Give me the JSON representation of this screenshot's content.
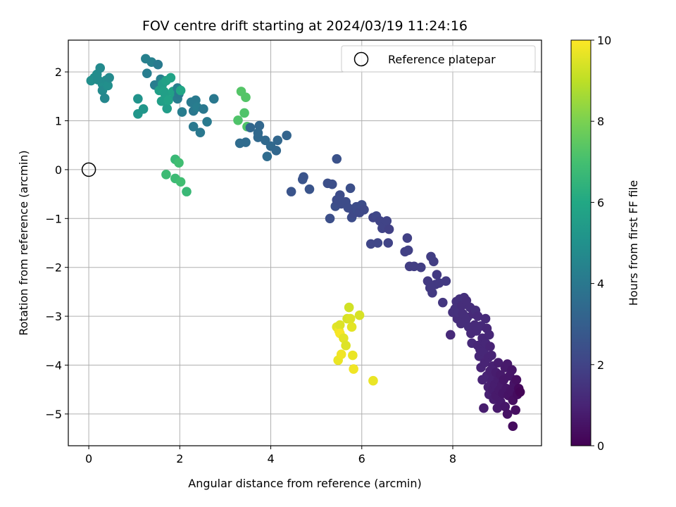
{
  "chart_data": {
    "type": "scatter",
    "title": "FOV centre drift starting at 2024/03/19 11:24:16",
    "xlabel": "Angular distance from reference (arcmin)",
    "ylabel": "Rotation from reference (arcmin)",
    "xlim": [
      -0.45,
      9.95
    ],
    "ylim": [
      -5.65,
      2.65
    ],
    "xticks": [
      0,
      2,
      4,
      6,
      8
    ],
    "yticks": [
      -5,
      -4,
      -3,
      -2,
      -1,
      0,
      1,
      2
    ],
    "grid": true,
    "legend": {
      "placement": "top-right",
      "entries": [
        "Reference platepar"
      ]
    },
    "reference_point": {
      "x": 0,
      "y": 0
    },
    "colorbar": {
      "label": "Hours from first FF file",
      "min": 0,
      "max": 10,
      "ticks": [
        0,
        2,
        4,
        6,
        8,
        10
      ],
      "colormap": "viridis"
    },
    "points": [
      {
        "x": 0.05,
        "y": 1.82,
        "h": 4.9
      },
      {
        "x": 0.12,
        "y": 1.88,
        "h": 4.9
      },
      {
        "x": 0.18,
        "y": 1.95,
        "h": 4.8
      },
      {
        "x": 0.25,
        "y": 2.08,
        "h": 4.7
      },
      {
        "x": 0.3,
        "y": 1.75,
        "h": 4.9
      },
      {
        "x": 0.3,
        "y": 1.62,
        "h": 4.7
      },
      {
        "x": 0.35,
        "y": 1.46,
        "h": 4.6
      },
      {
        "x": 0.38,
        "y": 1.83,
        "h": 4.8
      },
      {
        "x": 0.42,
        "y": 1.72,
        "h": 4.9
      },
      {
        "x": 0.45,
        "y": 1.88,
        "h": 4.7
      },
      {
        "x": 0.2,
        "y": 1.84,
        "h": 4.8
      },
      {
        "x": 1.08,
        "y": 1.45,
        "h": 5.1
      },
      {
        "x": 1.08,
        "y": 1.14,
        "h": 5.2
      },
      {
        "x": 1.2,
        "y": 1.24,
        "h": 5.2
      },
      {
        "x": 1.25,
        "y": 2.27,
        "h": 4.3
      },
      {
        "x": 1.28,
        "y": 1.97,
        "h": 4.2
      },
      {
        "x": 1.38,
        "y": 2.2,
        "h": 4.3
      },
      {
        "x": 1.45,
        "y": 1.73,
        "h": 4.2
      },
      {
        "x": 1.52,
        "y": 2.15,
        "h": 4.1
      },
      {
        "x": 1.55,
        "y": 1.62,
        "h": 5.6
      },
      {
        "x": 1.58,
        "y": 1.85,
        "h": 4.3
      },
      {
        "x": 1.6,
        "y": 1.4,
        "h": 5.6
      },
      {
        "x": 1.62,
        "y": 1.75,
        "h": 5.5
      },
      {
        "x": 1.65,
        "y": 1.6,
        "h": 5.7
      },
      {
        "x": 1.68,
        "y": 1.54,
        "h": 5.6
      },
      {
        "x": 1.7,
        "y": 1.82,
        "h": 5.7
      },
      {
        "x": 1.72,
        "y": 1.25,
        "h": 5.5
      },
      {
        "x": 1.75,
        "y": 1.42,
        "h": 5.8
      },
      {
        "x": 1.8,
        "y": 1.88,
        "h": 5.8
      },
      {
        "x": 1.85,
        "y": 1.6,
        "h": 5.8
      },
      {
        "x": 1.88,
        "y": 1.55,
        "h": 5.7
      },
      {
        "x": 1.95,
        "y": 1.67,
        "h": 4.3
      },
      {
        "x": 1.95,
        "y": 1.45,
        "h": 4.2
      },
      {
        "x": 1.98,
        "y": 1.55,
        "h": 4.1
      },
      {
        "x": 2.02,
        "y": 1.62,
        "h": 5.9
      },
      {
        "x": 2.05,
        "y": 1.18,
        "h": 4.2
      },
      {
        "x": 2.25,
        "y": 1.38,
        "h": 4.1
      },
      {
        "x": 2.3,
        "y": 1.2,
        "h": 4.0
      },
      {
        "x": 2.3,
        "y": 0.88,
        "h": 4.0
      },
      {
        "x": 2.35,
        "y": 1.42,
        "h": 4.1
      },
      {
        "x": 2.38,
        "y": 1.28,
        "h": 4.2
      },
      {
        "x": 2.45,
        "y": 0.76,
        "h": 4.0
      },
      {
        "x": 2.52,
        "y": 1.24,
        "h": 4.0
      },
      {
        "x": 2.6,
        "y": 0.98,
        "h": 4.1
      },
      {
        "x": 2.75,
        "y": 1.45,
        "h": 4.0
      },
      {
        "x": 1.7,
        "y": -0.1,
        "h": 6.8
      },
      {
        "x": 1.9,
        "y": 0.21,
        "h": 6.7
      },
      {
        "x": 1.9,
        "y": -0.18,
        "h": 6.8
      },
      {
        "x": 1.98,
        "y": 0.14,
        "h": 6.9
      },
      {
        "x": 2.02,
        "y": -0.25,
        "h": 6.9
      },
      {
        "x": 2.15,
        "y": -0.45,
        "h": 6.7
      },
      {
        "x": 3.28,
        "y": 1.01,
        "h": 7.2
      },
      {
        "x": 3.35,
        "y": 1.6,
        "h": 7.3
      },
      {
        "x": 3.42,
        "y": 1.16,
        "h": 7.2
      },
      {
        "x": 3.45,
        "y": 1.48,
        "h": 7.3
      },
      {
        "x": 3.48,
        "y": 0.88,
        "h": 7.2
      },
      {
        "x": 3.32,
        "y": 0.54,
        "h": 3.5
      },
      {
        "x": 3.45,
        "y": 0.56,
        "h": 3.5
      },
      {
        "x": 3.55,
        "y": 0.86,
        "h": 3.3
      },
      {
        "x": 3.72,
        "y": 0.66,
        "h": 3.4
      },
      {
        "x": 3.75,
        "y": 0.9,
        "h": 3.3
      },
      {
        "x": 3.72,
        "y": 0.75,
        "h": 3.4
      },
      {
        "x": 3.88,
        "y": 0.6,
        "h": 3.4
      },
      {
        "x": 3.92,
        "y": 0.27,
        "h": 3.5
      },
      {
        "x": 4.0,
        "y": 0.48,
        "h": 3.4
      },
      {
        "x": 4.12,
        "y": 0.39,
        "h": 3.3
      },
      {
        "x": 4.15,
        "y": 0.6,
        "h": 3.3
      },
      {
        "x": 4.35,
        "y": 0.7,
        "h": 3.2
      },
      {
        "x": 4.45,
        "y": -0.45,
        "h": 2.6
      },
      {
        "x": 4.7,
        "y": -0.2,
        "h": 2.6
      },
      {
        "x": 4.72,
        "y": -0.15,
        "h": 2.6
      },
      {
        "x": 4.85,
        "y": -0.4,
        "h": 2.6
      },
      {
        "x": 5.25,
        "y": -0.28,
        "h": 2.4
      },
      {
        "x": 5.35,
        "y": -0.3,
        "h": 2.4
      },
      {
        "x": 5.3,
        "y": -1.0,
        "h": 2.4
      },
      {
        "x": 5.42,
        "y": -0.75,
        "h": 2.4
      },
      {
        "x": 5.45,
        "y": 0.22,
        "h": 2.5
      },
      {
        "x": 5.45,
        "y": -0.62,
        "h": 2.3
      },
      {
        "x": 5.52,
        "y": -0.52,
        "h": 2.3
      },
      {
        "x": 5.55,
        "y": -0.7,
        "h": 2.3
      },
      {
        "x": 5.65,
        "y": -0.66,
        "h": 2.3
      },
      {
        "x": 5.7,
        "y": -0.78,
        "h": 2.3
      },
      {
        "x": 5.75,
        "y": -0.38,
        "h": 2.4
      },
      {
        "x": 5.78,
        "y": -0.98,
        "h": 2.3
      },
      {
        "x": 5.82,
        "y": -0.9,
        "h": 2.2
      },
      {
        "x": 5.88,
        "y": -0.76,
        "h": 2.3
      },
      {
        "x": 5.9,
        "y": -0.82,
        "h": 2.3
      },
      {
        "x": 5.95,
        "y": -0.88,
        "h": 2.2
      },
      {
        "x": 6.0,
        "y": -0.72,
        "h": 2.3
      },
      {
        "x": 6.05,
        "y": -0.82,
        "h": 2.2
      },
      {
        "x": 6.2,
        "y": -1.52,
        "h": 2.1
      },
      {
        "x": 6.25,
        "y": -0.98,
        "h": 2.0
      },
      {
        "x": 6.32,
        "y": -0.95,
        "h": 2.1
      },
      {
        "x": 6.35,
        "y": -1.5,
        "h": 2.1
      },
      {
        "x": 6.4,
        "y": -1.05,
        "h": 2.0
      },
      {
        "x": 6.45,
        "y": -1.2,
        "h": 2.0
      },
      {
        "x": 6.5,
        "y": -1.15,
        "h": 2.0
      },
      {
        "x": 6.55,
        "y": -1.05,
        "h": 2.0
      },
      {
        "x": 6.58,
        "y": -1.5,
        "h": 2.0
      },
      {
        "x": 6.6,
        "y": -1.22,
        "h": 1.9
      },
      {
        "x": 6.95,
        "y": -1.68,
        "h": 1.9
      },
      {
        "x": 7.0,
        "y": -1.4,
        "h": 1.9
      },
      {
        "x": 7.02,
        "y": -1.65,
        "h": 1.9
      },
      {
        "x": 7.05,
        "y": -1.98,
        "h": 1.8
      },
      {
        "x": 7.15,
        "y": -1.98,
        "h": 1.8
      },
      {
        "x": 7.3,
        "y": -2.0,
        "h": 1.8
      },
      {
        "x": 7.45,
        "y": -2.28,
        "h": 1.7
      },
      {
        "x": 7.5,
        "y": -2.42,
        "h": 1.7
      },
      {
        "x": 7.55,
        "y": -2.52,
        "h": 1.7
      },
      {
        "x": 7.52,
        "y": -1.78,
        "h": 1.8
      },
      {
        "x": 7.58,
        "y": -1.88,
        "h": 1.8
      },
      {
        "x": 7.62,
        "y": -2.35,
        "h": 1.7
      },
      {
        "x": 7.65,
        "y": -2.15,
        "h": 1.7
      },
      {
        "x": 7.7,
        "y": -2.32,
        "h": 1.7
      },
      {
        "x": 7.78,
        "y": -2.72,
        "h": 1.6
      },
      {
        "x": 7.85,
        "y": -2.28,
        "h": 1.7
      },
      {
        "x": 7.95,
        "y": -3.38,
        "h": 1.2
      },
      {
        "x": 8.0,
        "y": -2.92,
        "h": 1.4
      },
      {
        "x": 8.05,
        "y": -2.85,
        "h": 1.4
      },
      {
        "x": 8.08,
        "y": -2.7,
        "h": 1.4
      },
      {
        "x": 8.1,
        "y": -3.05,
        "h": 1.3
      },
      {
        "x": 8.12,
        "y": -2.92,
        "h": 1.4
      },
      {
        "x": 8.15,
        "y": -2.65,
        "h": 1.4
      },
      {
        "x": 8.18,
        "y": -3.15,
        "h": 1.3
      },
      {
        "x": 8.2,
        "y": -2.78,
        "h": 1.3
      },
      {
        "x": 8.22,
        "y": -2.95,
        "h": 1.3
      },
      {
        "x": 8.25,
        "y": -2.62,
        "h": 1.4
      },
      {
        "x": 8.28,
        "y": -3.1,
        "h": 1.3
      },
      {
        "x": 8.3,
        "y": -2.68,
        "h": 1.3
      },
      {
        "x": 8.32,
        "y": -3.02,
        "h": 1.3
      },
      {
        "x": 8.35,
        "y": -3.22,
        "h": 1.3
      },
      {
        "x": 8.38,
        "y": -2.82,
        "h": 1.3
      },
      {
        "x": 8.4,
        "y": -3.35,
        "h": 1.2
      },
      {
        "x": 8.42,
        "y": -3.55,
        "h": 1.2
      },
      {
        "x": 8.45,
        "y": -2.95,
        "h": 1.2
      },
      {
        "x": 8.48,
        "y": -3.18,
        "h": 1.2
      },
      {
        "x": 8.5,
        "y": -2.88,
        "h": 1.3
      },
      {
        "x": 8.52,
        "y": -3.3,
        "h": 1.2
      },
      {
        "x": 8.55,
        "y": -3.0,
        "h": 1.2
      },
      {
        "x": 8.55,
        "y": -3.6,
        "h": 1.1
      },
      {
        "x": 8.58,
        "y": -3.82,
        "h": 1.1
      },
      {
        "x": 8.6,
        "y": -3.68,
        "h": 1.1
      },
      {
        "x": 8.62,
        "y": -3.2,
        "h": 1.2
      },
      {
        "x": 8.62,
        "y": -4.05,
        "h": 1.0
      },
      {
        "x": 8.65,
        "y": -3.45,
        "h": 1.1
      },
      {
        "x": 8.65,
        "y": -4.3,
        "h": 1.0
      },
      {
        "x": 8.68,
        "y": -3.72,
        "h": 1.1
      },
      {
        "x": 8.68,
        "y": -4.88,
        "h": 0.8
      },
      {
        "x": 8.7,
        "y": -3.95,
        "h": 1.0
      },
      {
        "x": 8.72,
        "y": -3.05,
        "h": 1.2
      },
      {
        "x": 8.72,
        "y": -3.55,
        "h": 1.1
      },
      {
        "x": 8.75,
        "y": -4.22,
        "h": 1.0
      },
      {
        "x": 8.75,
        "y": -3.25,
        "h": 1.1
      },
      {
        "x": 8.78,
        "y": -3.85,
        "h": 1.0
      },
      {
        "x": 8.78,
        "y": -4.45,
        "h": 0.9
      },
      {
        "x": 8.8,
        "y": -3.38,
        "h": 1.1
      },
      {
        "x": 8.8,
        "y": -4.6,
        "h": 0.9
      },
      {
        "x": 8.82,
        "y": -3.62,
        "h": 1.0
      },
      {
        "x": 8.82,
        "y": -4.12,
        "h": 0.9
      },
      {
        "x": 8.85,
        "y": -4.35,
        "h": 0.9
      },
      {
        "x": 8.85,
        "y": -3.8,
        "h": 1.0
      },
      {
        "x": 8.88,
        "y": -4.5,
        "h": 0.8
      },
      {
        "x": 8.88,
        "y": -4.02,
        "h": 0.9
      },
      {
        "x": 8.9,
        "y": -4.7,
        "h": 0.8
      },
      {
        "x": 8.9,
        "y": -4.25,
        "h": 0.9
      },
      {
        "x": 8.92,
        "y": -4.4,
        "h": 0.8
      },
      {
        "x": 8.95,
        "y": -4.15,
        "h": 0.8
      },
      {
        "x": 8.95,
        "y": -4.62,
        "h": 0.7
      },
      {
        "x": 8.98,
        "y": -4.88,
        "h": 0.7
      },
      {
        "x": 9.0,
        "y": -4.3,
        "h": 0.8
      },
      {
        "x": 9.0,
        "y": -3.95,
        "h": 0.8
      },
      {
        "x": 9.02,
        "y": -4.52,
        "h": 0.7
      },
      {
        "x": 9.05,
        "y": -4.75,
        "h": 0.7
      },
      {
        "x": 9.05,
        "y": -4.2,
        "h": 0.7
      },
      {
        "x": 9.08,
        "y": -4.4,
        "h": 0.7
      },
      {
        "x": 9.1,
        "y": -4.58,
        "h": 0.6
      },
      {
        "x": 9.12,
        "y": -4.3,
        "h": 0.6
      },
      {
        "x": 9.15,
        "y": -4.85,
        "h": 0.6
      },
      {
        "x": 9.15,
        "y": -4.05,
        "h": 0.7
      },
      {
        "x": 9.18,
        "y": -4.48,
        "h": 0.6
      },
      {
        "x": 9.2,
        "y": -5.0,
        "h": 0.5
      },
      {
        "x": 9.2,
        "y": -3.98,
        "h": 0.7
      },
      {
        "x": 9.22,
        "y": -4.62,
        "h": 0.5
      },
      {
        "x": 9.25,
        "y": -4.22,
        "h": 0.6
      },
      {
        "x": 9.28,
        "y": -4.52,
        "h": 0.5
      },
      {
        "x": 9.3,
        "y": -4.1,
        "h": 0.6
      },
      {
        "x": 9.32,
        "y": -4.72,
        "h": 0.4
      },
      {
        "x": 9.32,
        "y": -5.25,
        "h": 0.3
      },
      {
        "x": 9.35,
        "y": -4.38,
        "h": 0.5
      },
      {
        "x": 9.38,
        "y": -4.92,
        "h": 0.4
      },
      {
        "x": 9.4,
        "y": -4.3,
        "h": 0.4
      },
      {
        "x": 9.42,
        "y": -4.6,
        "h": 0.3
      },
      {
        "x": 9.45,
        "y": -4.48,
        "h": 0.2
      },
      {
        "x": 9.48,
        "y": -4.55,
        "h": 0.1
      },
      {
        "x": 5.45,
        "y": -3.22,
        "h": 9.6
      },
      {
        "x": 5.48,
        "y": -3.9,
        "h": 9.7
      },
      {
        "x": 5.5,
        "y": -3.3,
        "h": 9.8
      },
      {
        "x": 5.52,
        "y": -3.18,
        "h": 9.5
      },
      {
        "x": 5.52,
        "y": -3.35,
        "h": 9.9
      },
      {
        "x": 5.55,
        "y": -3.78,
        "h": 9.8
      },
      {
        "x": 5.6,
        "y": -3.45,
        "h": 9.6
      },
      {
        "x": 5.65,
        "y": -3.6,
        "h": 9.5
      },
      {
        "x": 5.68,
        "y": -3.05,
        "h": 9.4
      },
      {
        "x": 5.72,
        "y": -2.82,
        "h": 9.3
      },
      {
        "x": 5.75,
        "y": -3.05,
        "h": 9.5
      },
      {
        "x": 5.78,
        "y": -3.22,
        "h": 9.6
      },
      {
        "x": 5.8,
        "y": -3.8,
        "h": 9.7
      },
      {
        "x": 5.82,
        "y": -4.08,
        "h": 9.8
      },
      {
        "x": 5.95,
        "y": -2.98,
        "h": 9.4
      },
      {
        "x": 6.25,
        "y": -4.32,
        "h": 9.7
      }
    ]
  }
}
